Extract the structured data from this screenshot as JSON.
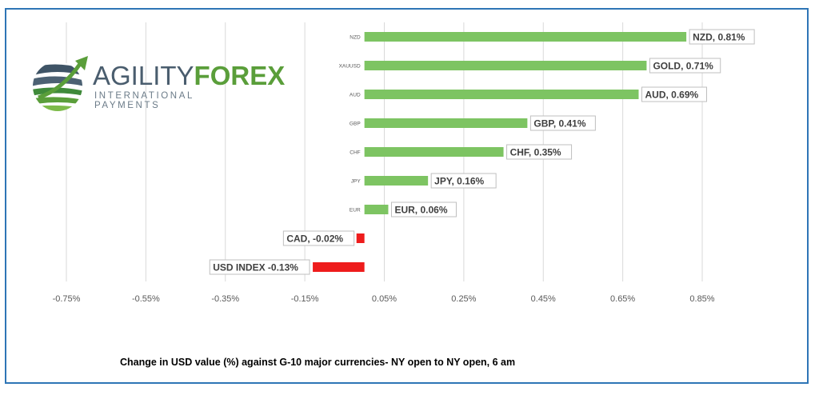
{
  "brand": {
    "name_part1": "AGILITY",
    "name_part2": "FOREX",
    "tagline": "INTERNATIONAL PAYMENTS",
    "colors": {
      "dark": "#4a5d6e",
      "green": "#5a9e3a"
    }
  },
  "caption": "Change in  USD value (%)  against  G-10 major currencies-  NY open to  NY open, 6 am",
  "chart_data": {
    "type": "bar",
    "orientation": "horizontal",
    "categories": [
      "NZD",
      "XAUUSD",
      "AUD",
      "GBP",
      "CHF",
      "JPY",
      "EUR",
      "CAD",
      "USD INDEX"
    ],
    "values": [
      0.81,
      0.71,
      0.69,
      0.41,
      0.35,
      0.16,
      0.06,
      -0.02,
      -0.13
    ],
    "data_labels": [
      "NZD, 0.81%",
      "GOLD, 0.71%",
      "AUD, 0.69%",
      "GBP, 0.41%",
      "CHF, 0.35%",
      "JPY, 0.16%",
      "EUR, 0.06%",
      "CAD, -0.02%",
      "USD INDEX -0.13%"
    ],
    "xticks": [
      -0.75,
      -0.55,
      -0.35,
      -0.15,
      0.05,
      0.25,
      0.45,
      0.65,
      0.85
    ],
    "xtick_labels": [
      "-0.75%",
      "-0.55%",
      "-0.35%",
      "-0.15%",
      "0.05%",
      "0.25%",
      "0.45%",
      "0.65%",
      "0.85%"
    ],
    "xlim": [
      -0.75,
      0.85
    ],
    "grid": true,
    "colors": {
      "positive": "#7dc462",
      "negative": "#ee1c1c",
      "grid": "#d9d9d9"
    }
  }
}
